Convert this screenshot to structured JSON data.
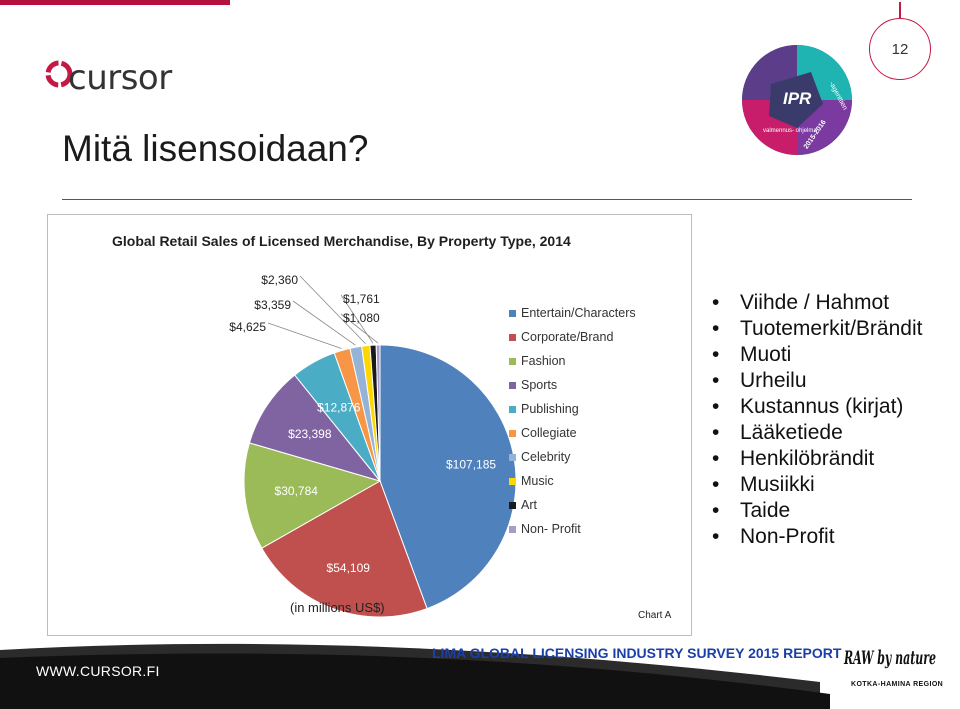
{
  "slide": {
    "title": "Mitä lisensoidaan?",
    "page_number": "12",
    "logo_text": "cursor",
    "footer_url": "WWW.CURSOR.FI",
    "source": "LIMA GLOBAL LICENSING INDUSTRY SURVEY 2015 REPORT",
    "ipr_badge": {
      "main": "IPR",
      "side": "-agenttien",
      "left": "valmennus-\nohjelma",
      "year": "2015-2016"
    },
    "partner_logo": {
      "main": "RAW by nature",
      "sub": "KOTKA-HAMINA REGION"
    }
  },
  "bullets": [
    "Viihde / Hahmot",
    "Tuotemerkit/Brändit",
    "Muoti",
    "Urheilu",
    "Kustannus (kirjat)",
    "Lääketiede",
    "Henkilöbrändit",
    "Musiikki",
    "Taide",
    "Non-Profit"
  ],
  "chart_data": {
    "type": "pie",
    "title": "Global Retail Sales of Licensed Merchandise, By Property Type, 2014",
    "unit_note": "(in millions US$)",
    "footnote": "Chart A",
    "legend_position": "right",
    "slices": [
      {
        "name": "Entertain/Characters",
        "value": 107185,
        "label": "$107,185",
        "color": "#4f81bd"
      },
      {
        "name": "Corporate/Brand",
        "value": 54109,
        "label": "$54,109",
        "color": "#c0504d"
      },
      {
        "name": "Fashion",
        "value": 30784,
        "label": "$30,784",
        "color": "#9bbb59"
      },
      {
        "name": "Sports",
        "value": 23398,
        "label": "$23,398",
        "color": "#8064a2"
      },
      {
        "name": "Publishing",
        "value": 12876,
        "label": "$12,876",
        "color": "#4bacc6"
      },
      {
        "name": "Collegiate",
        "value": 4625,
        "label": "$4,625",
        "color": "#f79646"
      },
      {
        "name": "Celebrity",
        "value": 3359,
        "label": "$3,359",
        "color": "#95b3d7"
      },
      {
        "name": "Music",
        "value": 2360,
        "label": "$2,360",
        "color": "#ffd700"
      },
      {
        "name": "Art",
        "value": 1761,
        "label": "$1,761",
        "color": "#1a1a1a"
      },
      {
        "name": "Non- Profit",
        "value": 1080,
        "label": "$1,080",
        "color": "#a99bc6"
      }
    ]
  }
}
